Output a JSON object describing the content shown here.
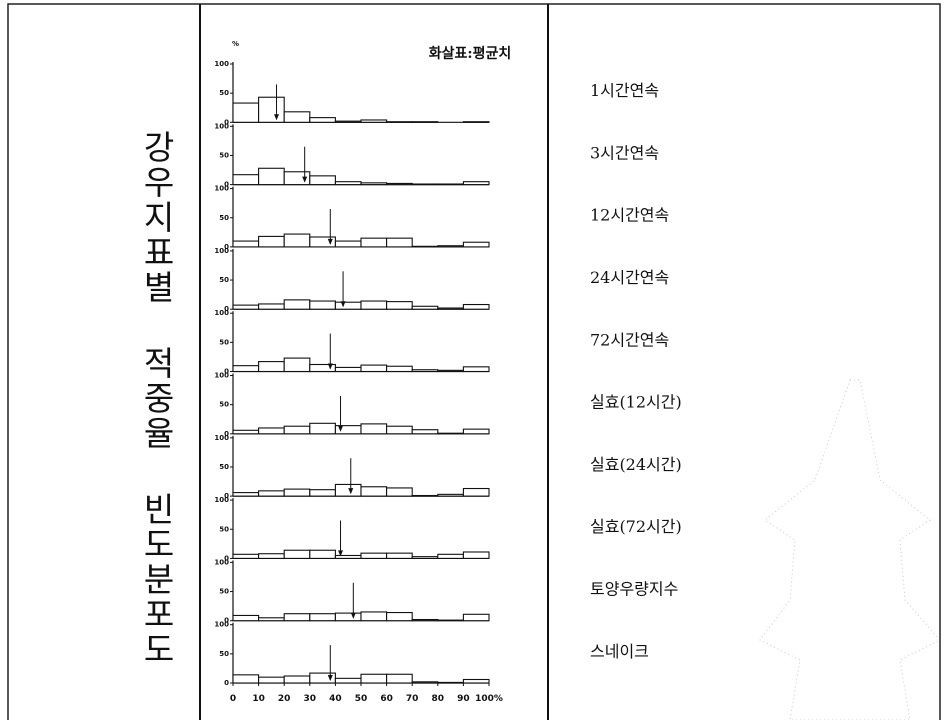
{
  "chart_data": {
    "type": "histogram",
    "title": "강우지표별 적중율 빈도분포도",
    "annotation": "화살표:평균치",
    "y_label": "%",
    "bins": [
      0,
      10,
      20,
      30,
      40,
      50,
      60,
      70,
      80,
      90,
      100
    ],
    "xlim": [
      0,
      100
    ],
    "xticks": [
      0,
      10,
      20,
      30,
      40,
      50,
      60,
      70,
      80,
      90,
      {
        "value": 100,
        "label": "100%"
      }
    ],
    "ylim": [
      0,
      100
    ],
    "yticks": [
      0,
      50,
      100
    ],
    "color": "#ffffff",
    "series": [
      {
        "name": "1시간연속",
        "values": [
          33,
          43,
          18,
          8,
          2,
          4,
          1,
          1,
          0,
          1
        ],
        "mean": 17
      },
      {
        "name": "3시간연속",
        "values": [
          17,
          28,
          22,
          15,
          5,
          3,
          2,
          1,
          1,
          5
        ],
        "mean": 28
      },
      {
        "name": "12시간연속",
        "values": [
          10,
          18,
          22,
          17,
          10,
          15,
          15,
          1,
          2,
          8
        ],
        "mean": 38
      },
      {
        "name": "24시간연속",
        "values": [
          7,
          9,
          16,
          14,
          12,
          14,
          13,
          5,
          2,
          8
        ],
        "mean": 43
      },
      {
        "name": "72시간연속",
        "values": [
          10,
          17,
          23,
          12,
          7,
          11,
          9,
          3,
          2,
          8
        ],
        "mean": 38
      },
      {
        "name": "실효(12시간)",
        "values": [
          6,
          10,
          13,
          18,
          14,
          17,
          13,
          7,
          1,
          8
        ],
        "mean": 42
      },
      {
        "name": "실효(24시간)",
        "values": [
          6,
          9,
          12,
          11,
          20,
          16,
          14,
          1,
          3,
          13
        ],
        "mean": 46
      },
      {
        "name": "실효(72시간)",
        "values": [
          7,
          8,
          14,
          14,
          5,
          9,
          9,
          3,
          7,
          11
        ],
        "mean": 42
      },
      {
        "name": "토양우량지수",
        "values": [
          9,
          5,
          12,
          12,
          13,
          15,
          14,
          2,
          1,
          11
        ],
        "mean": 47
      },
      {
        "name": "스네이크",
        "values": [
          14,
          10,
          12,
          17,
          8,
          15,
          15,
          2,
          1,
          6
        ],
        "mean": 38
      }
    ]
  }
}
